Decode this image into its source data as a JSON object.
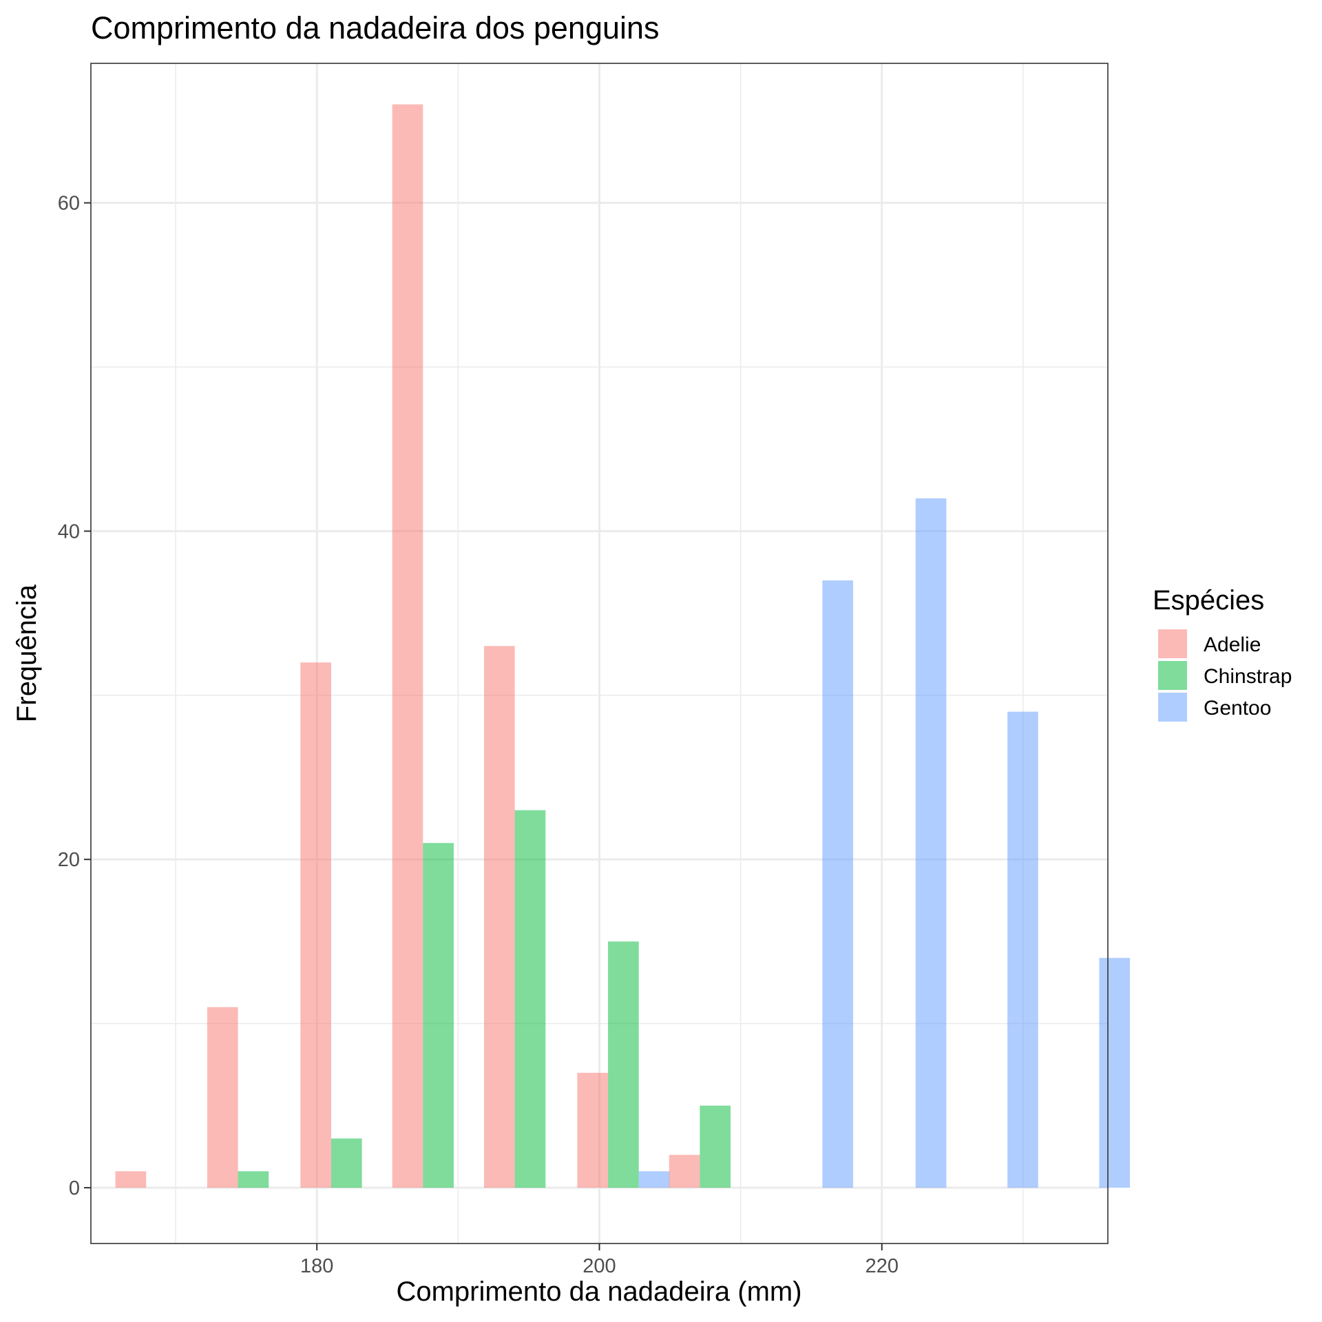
{
  "chart_data": {
    "type": "bar",
    "title": "Comprimento da nadadeira dos penguins",
    "xlabel": "Comprimento da nadadeira (mm)",
    "ylabel": "Frequência",
    "xlim": [
      164,
      236
    ],
    "ylim": [
      -3.4,
      68.5
    ],
    "x_ticks": [
      180,
      200,
      220
    ],
    "y_ticks": [
      0,
      20,
      40,
      60
    ],
    "grid": true,
    "legend": {
      "title": "Espécies",
      "position": "right"
    },
    "bin_width": 6.53,
    "bin_centers": [
      169.0,
      175.5,
      182.1,
      188.6,
      195.1,
      201.7,
      208.2,
      214.7,
      221.3,
      227.8,
      234.3
    ],
    "series": [
      {
        "name": "Adelie",
        "color": "#F8766D",
        "values": [
          1,
          11,
          32,
          66,
          33,
          7,
          2,
          0,
          0,
          0,
          0
        ]
      },
      {
        "name": "Chinstrap",
        "color": "#00BA38",
        "values": [
          0,
          1,
          3,
          21,
          23,
          15,
          5,
          0,
          0,
          0,
          0
        ]
      },
      {
        "name": "Gentoo",
        "color": "#619CFF",
        "values": [
          0,
          0,
          0,
          0,
          0,
          1,
          0,
          37,
          42,
          29,
          14
        ]
      }
    ]
  }
}
